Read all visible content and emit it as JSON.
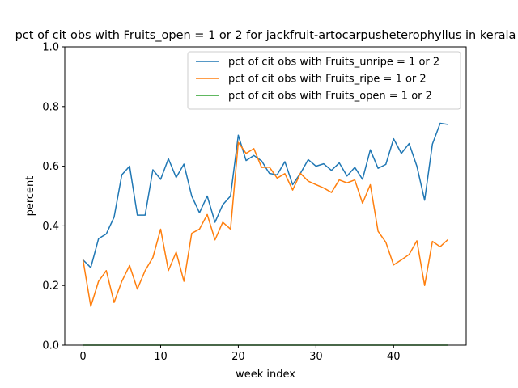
{
  "chart_data": {
    "type": "line",
    "title": "pct of cit obs with Fruits_open = 1 or 2 for jackfruit-artocarpusheterophyllus in kerala",
    "xlabel": "week index",
    "ylabel": "percent",
    "xlim": [
      -2.35,
      49.35
    ],
    "ylim": [
      0.0,
      1.0
    ],
    "xticks": [
      0,
      10,
      20,
      30,
      40
    ],
    "yticks": [
      0.0,
      0.2,
      0.4,
      0.6,
      0.8,
      1.0
    ],
    "ytick_labels": [
      "0.0",
      "0.2",
      "0.4",
      "0.6",
      "0.8",
      "1.0"
    ],
    "legend_position": "upper right",
    "grid": false,
    "x": [
      0,
      1,
      2,
      3,
      4,
      5,
      6,
      7,
      8,
      9,
      10,
      11,
      12,
      13,
      14,
      15,
      16,
      17,
      18,
      19,
      20,
      21,
      22,
      23,
      24,
      25,
      26,
      27,
      28,
      29,
      30,
      31,
      32,
      33,
      34,
      35,
      36,
      37,
      38,
      39,
      40,
      41,
      42,
      43,
      44,
      45,
      46,
      47
    ],
    "series": [
      {
        "name": "pct of cit obs with Fruits_unripe = 1 or 2",
        "color": "#1f77b4",
        "values": [
          0.286,
          0.26,
          0.357,
          0.373,
          0.429,
          0.571,
          0.6,
          0.436,
          0.436,
          0.588,
          0.556,
          0.625,
          0.562,
          0.607,
          0.5,
          0.444,
          0.5,
          0.412,
          0.471,
          0.5,
          0.704,
          0.619,
          0.636,
          0.618,
          0.576,
          0.571,
          0.615,
          0.538,
          0.576,
          0.622,
          0.6,
          0.608,
          0.586,
          0.611,
          0.567,
          0.596,
          0.556,
          0.655,
          0.593,
          0.606,
          0.692,
          0.643,
          0.676,
          0.6,
          0.486,
          0.674,
          0.744,
          0.74
        ]
      },
      {
        "name": "pct of cit obs with Fruits_ripe = 1 or 2",
        "color": "#ff7f0e",
        "values": [
          0.286,
          0.13,
          0.214,
          0.25,
          0.143,
          0.214,
          0.267,
          0.188,
          0.25,
          0.294,
          0.389,
          0.25,
          0.312,
          0.214,
          0.375,
          0.389,
          0.438,
          0.353,
          0.412,
          0.389,
          0.68,
          0.643,
          0.659,
          0.596,
          0.597,
          0.56,
          0.575,
          0.52,
          0.576,
          0.55,
          0.538,
          0.527,
          0.512,
          0.554,
          0.544,
          0.554,
          0.476,
          0.538,
          0.382,
          0.345,
          0.269,
          0.286,
          0.304,
          0.35,
          0.2,
          0.348,
          0.33,
          0.354
        ]
      },
      {
        "name": "pct of cit obs with Fruits_open = 1 or 2",
        "color": "#2ca02c",
        "values": [
          0,
          0,
          0,
          0,
          0,
          0,
          0,
          0,
          0,
          0,
          0,
          0,
          0,
          0,
          0,
          0,
          0,
          0,
          0,
          0,
          0,
          0,
          0,
          0,
          0,
          0,
          0,
          0,
          0,
          0,
          0,
          0,
          0,
          0,
          0,
          0,
          0,
          0,
          0,
          0,
          0,
          0,
          0,
          0,
          0,
          0,
          0,
          0
        ]
      }
    ]
  }
}
